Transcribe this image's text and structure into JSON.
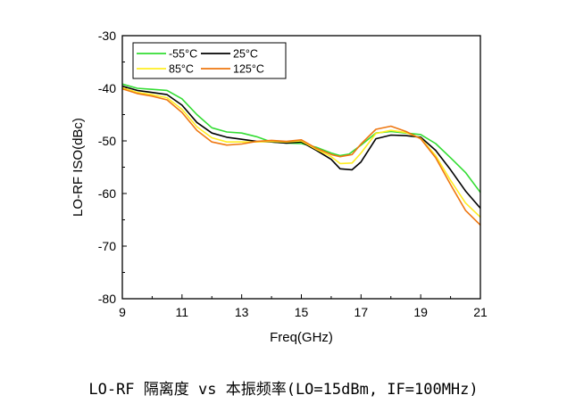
{
  "chart_data": {
    "type": "line",
    "title": "",
    "xlabel": "Freq(GHz)",
    "ylabel": "LO-RF ISO(dBc)",
    "xlim": [
      9,
      21
    ],
    "ylim": [
      -80,
      -30
    ],
    "xticks": [
      9,
      11,
      13,
      15,
      17,
      19,
      21
    ],
    "yticks": [
      -30,
      -40,
      -50,
      -60,
      -70,
      -80
    ],
    "legend_position": "top-left",
    "grid": false,
    "series": [
      {
        "name": "-55°C",
        "color": "#33dd33",
        "points": [
          [
            9,
            -39.2
          ],
          [
            9.5,
            -40
          ],
          [
            10,
            -40.2
          ],
          [
            10.5,
            -40.4
          ],
          [
            11,
            -42
          ],
          [
            11.5,
            -45
          ],
          [
            12,
            -47.5
          ],
          [
            12.5,
            -48.3
          ],
          [
            13,
            -48.5
          ],
          [
            13.5,
            -49.2
          ],
          [
            14,
            -50.2
          ],
          [
            14.5,
            -50.4
          ],
          [
            15,
            -50.5
          ],
          [
            15.5,
            -51.2
          ],
          [
            16,
            -52.3
          ],
          [
            16.3,
            -52.8
          ],
          [
            16.6,
            -52.5
          ],
          [
            17,
            -50.8
          ],
          [
            17.5,
            -48.5
          ],
          [
            18,
            -48.2
          ],
          [
            18.5,
            -48.5
          ],
          [
            19,
            -48.8
          ],
          [
            19.5,
            -50.5
          ],
          [
            20,
            -53.2
          ],
          [
            20.5,
            -56
          ],
          [
            21,
            -59.8
          ]
        ]
      },
      {
        "name": "25°C",
        "color": "#000000",
        "points": [
          [
            9,
            -39.6
          ],
          [
            9.5,
            -40.4
          ],
          [
            10,
            -40.8
          ],
          [
            10.5,
            -41.2
          ],
          [
            11,
            -43.2
          ],
          [
            11.5,
            -46.5
          ],
          [
            12,
            -48.5
          ],
          [
            12.5,
            -49.3
          ],
          [
            13,
            -49.7
          ],
          [
            13.5,
            -50.1
          ],
          [
            14,
            -50.2
          ],
          [
            14.5,
            -50.4
          ],
          [
            15,
            -50.2
          ],
          [
            15.5,
            -51.8
          ],
          [
            16,
            -53.5
          ],
          [
            16.3,
            -55.3
          ],
          [
            16.7,
            -55.5
          ],
          [
            17,
            -54
          ],
          [
            17.5,
            -49.6
          ],
          [
            18,
            -48.9
          ],
          [
            18.5,
            -49
          ],
          [
            19,
            -49.3
          ],
          [
            19.5,
            -51.8
          ],
          [
            20,
            -55.5
          ],
          [
            20.5,
            -59.5
          ],
          [
            21,
            -62.8
          ]
        ]
      },
      {
        "name": "85°C",
        "color": "#ffee22",
        "points": [
          [
            9,
            -39.9
          ],
          [
            9.5,
            -40.8
          ],
          [
            10,
            -41.2
          ],
          [
            10.5,
            -41.8
          ],
          [
            11,
            -44
          ],
          [
            11.5,
            -47.3
          ],
          [
            12,
            -49.4
          ],
          [
            12.5,
            -50.2
          ],
          [
            13,
            -50.2
          ],
          [
            13.5,
            -50.2
          ],
          [
            14,
            -50.1
          ],
          [
            14.5,
            -50.2
          ],
          [
            15,
            -50
          ],
          [
            15.5,
            -51.6
          ],
          [
            16,
            -53
          ],
          [
            16.3,
            -54.3
          ],
          [
            16.7,
            -54.2
          ],
          [
            17,
            -52.3
          ],
          [
            17.5,
            -48.6
          ],
          [
            18,
            -48
          ],
          [
            18.5,
            -48.4
          ],
          [
            19,
            -49.5
          ],
          [
            19.5,
            -52.8
          ],
          [
            20,
            -57.5
          ],
          [
            20.5,
            -61.8
          ],
          [
            21,
            -64.5
          ]
        ]
      },
      {
        "name": "125°C",
        "color": "#ee7711",
        "points": [
          [
            9,
            -40.1
          ],
          [
            9.5,
            -41
          ],
          [
            10,
            -41.5
          ],
          [
            10.5,
            -42.2
          ],
          [
            11,
            -44.6
          ],
          [
            11.5,
            -48
          ],
          [
            12,
            -50.2
          ],
          [
            12.5,
            -50.8
          ],
          [
            13,
            -50.6
          ],
          [
            13.5,
            -50.1
          ],
          [
            14,
            -49.9
          ],
          [
            14.5,
            -50.1
          ],
          [
            15,
            -49.8
          ],
          [
            15.5,
            -51.4
          ],
          [
            16,
            -52.6
          ],
          [
            16.3,
            -53
          ],
          [
            16.7,
            -52.6
          ],
          [
            17,
            -50.6
          ],
          [
            17.5,
            -47.8
          ],
          [
            18,
            -47.2
          ],
          [
            18.5,
            -48.2
          ],
          [
            19,
            -49.6
          ],
          [
            19.5,
            -53.2
          ],
          [
            20,
            -58.3
          ],
          [
            20.5,
            -63.2
          ],
          [
            21,
            -66
          ]
        ]
      }
    ]
  },
  "caption": "LO-RF 隔离度 vs 本振频率(LO=15dBm, IF=100MHz)"
}
